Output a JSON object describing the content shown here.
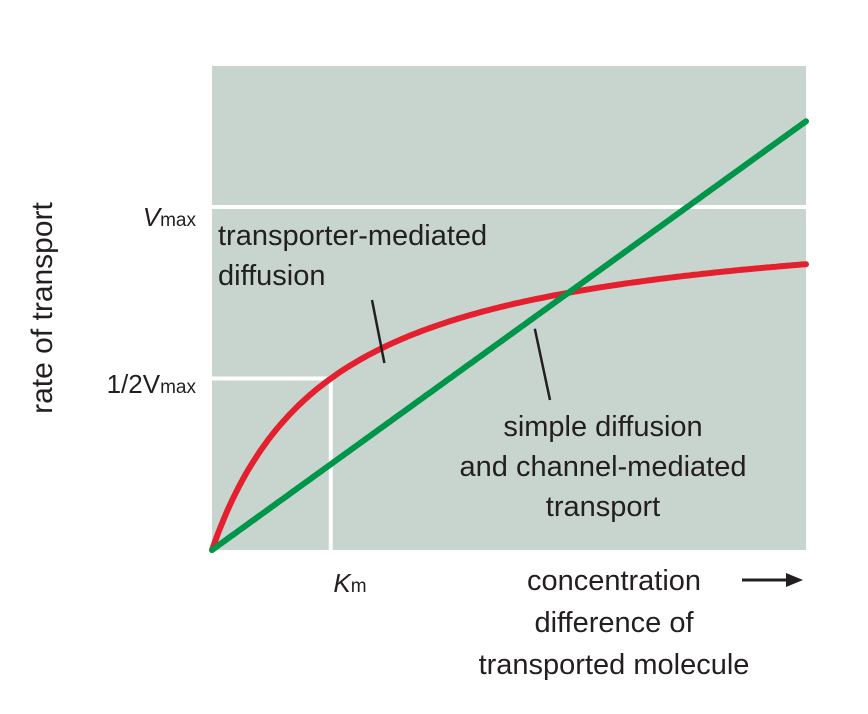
{
  "chart_data": {
    "type": "line",
    "ylabel": "rate of transport",
    "xlabel": [
      "concentration",
      "difference of",
      "transported molecule"
    ],
    "xticks": [
      {
        "label": "K",
        "sub": "m",
        "x": 1
      }
    ],
    "yticks": [
      {
        "label": "V",
        "sub": "max",
        "y": 1
      },
      {
        "label": "1/2V",
        "sub": "max",
        "y": 0.5
      }
    ],
    "x_range": [
      0,
      5
    ],
    "y_range": [
      0,
      1
    ],
    "grid": false,
    "background_color": "#c8d5cf",
    "series": [
      {
        "name": "transporter-mediated diffusion",
        "color": "#e5202e",
        "model": "michaelis-menten",
        "vmax": 1,
        "km": 1
      },
      {
        "name": "simple diffusion and channel-mediated transport",
        "color": "#00964a",
        "model": "linear",
        "slope": 0.25
      }
    ],
    "annotations": [
      {
        "lines": [
          "transporter-mediated",
          "diffusion"
        ],
        "series": 0
      },
      {
        "lines": [
          "simple diffusion",
          "and channel-mediated",
          "transport"
        ],
        "series": 1
      }
    ],
    "reference_lines": [
      {
        "type": "horizontal",
        "y": 1,
        "from_x": 0,
        "to_x": 5
      },
      {
        "type": "horizontal",
        "y": 0.5,
        "from_x": 0,
        "to_x": 1
      },
      {
        "type": "vertical",
        "x": 1,
        "from_y": 0,
        "to_y": 0.5
      }
    ]
  }
}
